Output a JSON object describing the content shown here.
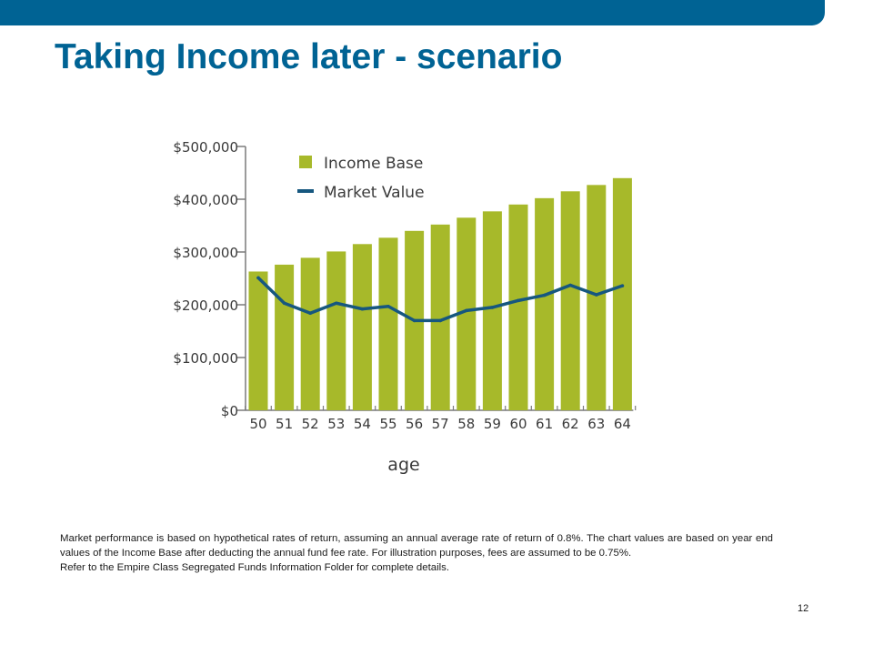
{
  "slide": {
    "title": "Taking Income later - scenario",
    "page_number": "12",
    "footnote": {
      "paragraph1": "Market performance is based on hypothetical rates of return, assuming an annual average rate of return of 0.8%. The chart values are based on year end values of the Income Base after deducting the annual fund fee rate. For illustration purposes, fees are assumed to be 0.75%.",
      "paragraph2": "Refer to the Empire Class Segregated Funds Information Folder for complete details."
    }
  },
  "colors": {
    "brand_blue": "#006394",
    "bar_green": "#a7b92a",
    "line_blue": "#16577f",
    "axis_gray": "#7a7a7a",
    "text_dark": "#3a3a3a"
  },
  "chart_data": {
    "type": "bar",
    "title": "",
    "xlabel": "age",
    "ylabel": "",
    "categories": [
      "50",
      "51",
      "52",
      "53",
      "54",
      "55",
      "56",
      "57",
      "58",
      "59",
      "60",
      "61",
      "62",
      "63",
      "64"
    ],
    "ylim": [
      0,
      500000
    ],
    "yticks": [
      0,
      100000,
      200000,
      300000,
      400000,
      500000
    ],
    "ytick_labels": [
      "$0",
      "$100,000",
      "$200,000",
      "$300,000",
      "$400,000",
      "$500,000"
    ],
    "grid": false,
    "legend_position": "top-left",
    "series": [
      {
        "name": "Income Base",
        "type": "bar",
        "color": "#a7b92a",
        "values": [
          263000,
          276000,
          289000,
          301000,
          315000,
          327000,
          340000,
          352000,
          365000,
          377000,
          390000,
          402000,
          415000,
          427000,
          440000
        ]
      },
      {
        "name": "Market Value",
        "type": "line",
        "color": "#16577f",
        "values": [
          251000,
          203000,
          184000,
          203000,
          192000,
          197000,
          170000,
          170000,
          189000,
          195000,
          208000,
          218000,
          237000,
          219000,
          236000
        ]
      }
    ]
  }
}
